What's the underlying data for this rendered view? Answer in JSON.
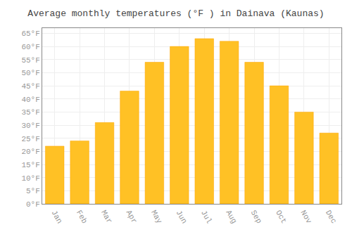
{
  "chart_data": {
    "type": "bar",
    "title": "Average monthly temperatures (°F ) in Dainava (Kaunas)",
    "categories": [
      "Jan",
      "Feb",
      "Mar",
      "Apr",
      "May",
      "Jun",
      "Jul",
      "Aug",
      "Sep",
      "Oct",
      "Nov",
      "Dec"
    ],
    "values": [
      22,
      24,
      31,
      43,
      54,
      60,
      63,
      62,
      54,
      45,
      35,
      27
    ],
    "color": "#FFC125",
    "ylim": [
      0,
      67
    ],
    "yticks": [
      {
        "value": 0,
        "label": "0°F"
      },
      {
        "value": 5,
        "label": "5°F"
      },
      {
        "value": 10,
        "label": "10°F"
      },
      {
        "value": 15,
        "label": "15°F"
      },
      {
        "value": 20,
        "label": "20°F"
      },
      {
        "value": 25,
        "label": "25°F"
      },
      {
        "value": 30,
        "label": "30°F"
      },
      {
        "value": 35,
        "label": "35°F"
      },
      {
        "value": 40,
        "label": "40°F"
      },
      {
        "value": 45,
        "label": "45°F"
      },
      {
        "value": 50,
        "label": "50°F"
      },
      {
        "value": 55,
        "label": "55°F"
      },
      {
        "value": 60,
        "label": "60°F"
      },
      {
        "value": 65,
        "label": "65°F"
      }
    ],
    "grid": true
  }
}
